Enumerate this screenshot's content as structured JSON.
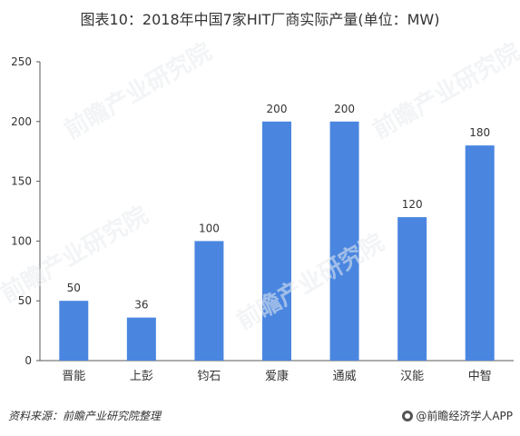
{
  "title": "图表10：2018年中国7家HIT厂商实际产量(单位：MW)",
  "source": "资料来源：前瞻产业研究院整理",
  "brand": "@前瞻经济学人APP",
  "watermark_text": "前瞻产业研究院",
  "colors": {
    "bar": "#4a86e0",
    "axis": "#595959",
    "text": "#333333"
  },
  "chart_data": {
    "type": "bar",
    "title": "图表10：2018年中国7家HIT厂商实际产量(单位：MW)",
    "xlabel": "",
    "ylabel": "",
    "categories": [
      "晋能",
      "上彭",
      "钧石",
      "爱康",
      "通威",
      "汉能",
      "中智"
    ],
    "values": [
      50,
      36,
      100,
      200,
      200,
      120,
      180
    ],
    "ylim": [
      0,
      250
    ],
    "yticks": [
      0,
      50,
      100,
      150,
      200,
      250
    ],
    "grid": false,
    "legend": "none"
  }
}
